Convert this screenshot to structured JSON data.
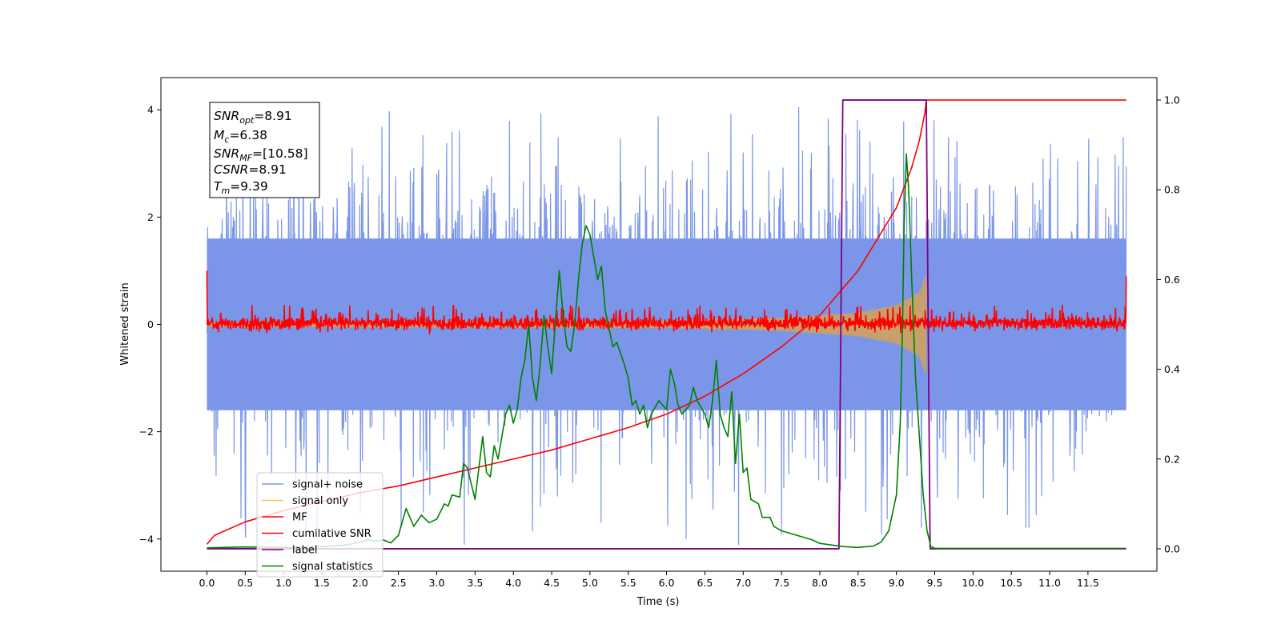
{
  "chart_data": {
    "type": "line",
    "title": "",
    "xlabel": "Time (s)",
    "ylabel_left": "Whitened strain",
    "ylabel_right": "",
    "xlim": [
      -0.6,
      12.4
    ],
    "ylim_left": [
      -4.6,
      4.6
    ],
    "ylim_right": [
      -0.05,
      1.05
    ],
    "x_ticks": [
      0.0,
      0.5,
      1.0,
      1.5,
      2.0,
      2.5,
      3.0,
      3.5,
      4.0,
      4.5,
      5.0,
      5.5,
      6.0,
      6.5,
      7.0,
      7.5,
      8.0,
      8.5,
      9.0,
      9.5,
      10.0,
      10.5,
      11.0,
      11.5
    ],
    "x_tick_labels": [
      "0.0",
      "0.5",
      "1.0",
      "1.5",
      "2.0",
      "2.5",
      "3.0",
      "3.5",
      "4.0",
      "4.5",
      "5.0",
      "5.5",
      "6.0",
      "6.5",
      "7.0",
      "7.5",
      "8.0",
      "8.5",
      "9.0",
      "9.5",
      "10.0",
      "10.5",
      "11.0",
      "11.5"
    ],
    "y_left_ticks": [
      -4,
      -2,
      0,
      2,
      4
    ],
    "y_left_tick_labels": [
      "−4",
      "−2",
      "0",
      "2",
      "4"
    ],
    "y_right_ticks": [
      0.0,
      0.2,
      0.4,
      0.6,
      0.8,
      1.0
    ],
    "y_right_tick_labels": [
      "0.0",
      "0.2",
      "0.4",
      "0.6",
      "0.8",
      "1.0"
    ],
    "grid": false,
    "legend_position": "bottom-left",
    "info_box": {
      "snr_opt": "=8.91",
      "mc": "=6.38",
      "snr_mf": "=[10.58]",
      "csnr": "=8.91",
      "tm": "=9.39"
    },
    "series": [
      {
        "name": "signal+ noise",
        "axis": "left",
        "color": "#7b96e8",
        "kind": "noise",
        "x_range": [
          0.0,
          12.0
        ],
        "amplitude_range": [
          -4.1,
          4.2
        ],
        "typical_spread": [
          -1.6,
          1.6
        ]
      },
      {
        "name": "signal only",
        "axis": "left",
        "color": "#f5c26b",
        "kind": "chirp",
        "x_range": [
          0.0,
          9.39
        ],
        "envelope_points": [
          {
            "x": 0.0,
            "amp": 0.05
          },
          {
            "x": 6.0,
            "amp": 0.08
          },
          {
            "x": 7.5,
            "amp": 0.12
          },
          {
            "x": 8.5,
            "amp": 0.22
          },
          {
            "x": 9.0,
            "amp": 0.36
          },
          {
            "x": 9.3,
            "amp": 0.6
          },
          {
            "x": 9.37,
            "amp": 0.9
          }
        ]
      },
      {
        "name": "MF",
        "axis": "left",
        "color": "#ff0000",
        "kind": "noise",
        "x_range": [
          0.0,
          12.0
        ],
        "typical_spread": [
          -0.12,
          0.2
        ],
        "edge_values": {
          "start": 1.0,
          "end": 0.9
        }
      },
      {
        "name": "cumilative SNR",
        "axis": "right",
        "color": "#ff0000",
        "kind": "line",
        "points": [
          {
            "x": 0.0,
            "y": 0.01
          },
          {
            "x": 0.1,
            "y": 0.03
          },
          {
            "x": 0.5,
            "y": 0.06
          },
          {
            "x": 1.0,
            "y": 0.085
          },
          {
            "x": 1.5,
            "y": 0.105
          },
          {
            "x": 2.0,
            "y": 0.125
          },
          {
            "x": 2.5,
            "y": 0.14
          },
          {
            "x": 3.0,
            "y": 0.16
          },
          {
            "x": 3.5,
            "y": 0.18
          },
          {
            "x": 4.0,
            "y": 0.2
          },
          {
            "x": 4.5,
            "y": 0.22
          },
          {
            "x": 5.0,
            "y": 0.245
          },
          {
            "x": 5.5,
            "y": 0.27
          },
          {
            "x": 6.0,
            "y": 0.3
          },
          {
            "x": 6.5,
            "y": 0.34
          },
          {
            "x": 7.0,
            "y": 0.39
          },
          {
            "x": 7.5,
            "y": 0.45
          },
          {
            "x": 8.0,
            "y": 0.52
          },
          {
            "x": 8.5,
            "y": 0.62
          },
          {
            "x": 9.0,
            "y": 0.76
          },
          {
            "x": 9.2,
            "y": 0.85
          },
          {
            "x": 9.3,
            "y": 0.91
          },
          {
            "x": 9.37,
            "y": 0.97
          },
          {
            "x": 9.39,
            "y": 1.0
          },
          {
            "x": 12.0,
            "y": 1.0
          }
        ]
      },
      {
        "name": "label",
        "axis": "right",
        "color": "#800080",
        "kind": "line",
        "points": [
          {
            "x": 0.0,
            "y": 0.0
          },
          {
            "x": 8.25,
            "y": 0.0
          },
          {
            "x": 8.3,
            "y": 1.0
          },
          {
            "x": 9.39,
            "y": 1.0
          },
          {
            "x": 9.44,
            "y": 0.0
          },
          {
            "x": 12.0,
            "y": 0.0
          }
        ]
      },
      {
        "name": "signal statistics",
        "axis": "right",
        "color": "#008000",
        "kind": "line",
        "points": [
          {
            "x": 0.0,
            "y": 0.002
          },
          {
            "x": 0.5,
            "y": 0.004
          },
          {
            "x": 1.0,
            "y": 0.003
          },
          {
            "x": 1.5,
            "y": 0.005
          },
          {
            "x": 1.8,
            "y": 0.008
          },
          {
            "x": 2.0,
            "y": 0.015
          },
          {
            "x": 2.1,
            "y": 0.02
          },
          {
            "x": 2.2,
            "y": 0.017
          },
          {
            "x": 2.3,
            "y": 0.02
          },
          {
            "x": 2.4,
            "y": 0.013
          },
          {
            "x": 2.5,
            "y": 0.03
          },
          {
            "x": 2.6,
            "y": 0.09
          },
          {
            "x": 2.7,
            "y": 0.05
          },
          {
            "x": 2.8,
            "y": 0.075
          },
          {
            "x": 2.9,
            "y": 0.058
          },
          {
            "x": 3.0,
            "y": 0.066
          },
          {
            "x": 3.1,
            "y": 0.1
          },
          {
            "x": 3.15,
            "y": 0.095
          },
          {
            "x": 3.2,
            "y": 0.12
          },
          {
            "x": 3.3,
            "y": 0.115
          },
          {
            "x": 3.35,
            "y": 0.19
          },
          {
            "x": 3.4,
            "y": 0.18
          },
          {
            "x": 3.5,
            "y": 0.11
          },
          {
            "x": 3.6,
            "y": 0.25
          },
          {
            "x": 3.65,
            "y": 0.17
          },
          {
            "x": 3.7,
            "y": 0.16
          },
          {
            "x": 3.75,
            "y": 0.23
          },
          {
            "x": 3.8,
            "y": 0.2
          },
          {
            "x": 3.9,
            "y": 0.3
          },
          {
            "x": 3.95,
            "y": 0.32
          },
          {
            "x": 4.0,
            "y": 0.28
          },
          {
            "x": 4.05,
            "y": 0.31
          },
          {
            "x": 4.1,
            "y": 0.38
          },
          {
            "x": 4.15,
            "y": 0.42
          },
          {
            "x": 4.2,
            "y": 0.5
          },
          {
            "x": 4.25,
            "y": 0.38
          },
          {
            "x": 4.3,
            "y": 0.33
          },
          {
            "x": 4.35,
            "y": 0.41
          },
          {
            "x": 4.4,
            "y": 0.52
          },
          {
            "x": 4.45,
            "y": 0.45
          },
          {
            "x": 4.5,
            "y": 0.39
          },
          {
            "x": 4.55,
            "y": 0.51
          },
          {
            "x": 4.6,
            "y": 0.62
          },
          {
            "x": 4.65,
            "y": 0.52
          },
          {
            "x": 4.7,
            "y": 0.45
          },
          {
            "x": 4.75,
            "y": 0.44
          },
          {
            "x": 4.8,
            "y": 0.5
          },
          {
            "x": 4.85,
            "y": 0.6
          },
          {
            "x": 4.9,
            "y": 0.68
          },
          {
            "x": 4.95,
            "y": 0.72
          },
          {
            "x": 5.0,
            "y": 0.7
          },
          {
            "x": 5.05,
            "y": 0.65
          },
          {
            "x": 5.1,
            "y": 0.6
          },
          {
            "x": 5.15,
            "y": 0.63
          },
          {
            "x": 5.2,
            "y": 0.53
          },
          {
            "x": 5.3,
            "y": 0.45
          },
          {
            "x": 5.35,
            "y": 0.46
          },
          {
            "x": 5.45,
            "y": 0.41
          },
          {
            "x": 5.5,
            "y": 0.38
          },
          {
            "x": 5.55,
            "y": 0.32
          },
          {
            "x": 5.6,
            "y": 0.33
          },
          {
            "x": 5.65,
            "y": 0.3
          },
          {
            "x": 5.7,
            "y": 0.32
          },
          {
            "x": 5.75,
            "y": 0.27
          },
          {
            "x": 5.8,
            "y": 0.3
          },
          {
            "x": 5.9,
            "y": 0.33
          },
          {
            "x": 6.0,
            "y": 0.31
          },
          {
            "x": 6.05,
            "y": 0.4
          },
          {
            "x": 6.1,
            "y": 0.37
          },
          {
            "x": 6.15,
            "y": 0.32
          },
          {
            "x": 6.2,
            "y": 0.3
          },
          {
            "x": 6.3,
            "y": 0.32
          },
          {
            "x": 6.35,
            "y": 0.36
          },
          {
            "x": 6.4,
            "y": 0.33
          },
          {
            "x": 6.5,
            "y": 0.3
          },
          {
            "x": 6.55,
            "y": 0.27
          },
          {
            "x": 6.6,
            "y": 0.33
          },
          {
            "x": 6.65,
            "y": 0.42
          },
          {
            "x": 6.7,
            "y": 0.3
          },
          {
            "x": 6.75,
            "y": 0.27
          },
          {
            "x": 6.8,
            "y": 0.25
          },
          {
            "x": 6.85,
            "y": 0.35
          },
          {
            "x": 6.9,
            "y": 0.19
          },
          {
            "x": 6.95,
            "y": 0.3
          },
          {
            "x": 7.0,
            "y": 0.17
          },
          {
            "x": 7.05,
            "y": 0.18
          },
          {
            "x": 7.1,
            "y": 0.11
          },
          {
            "x": 7.2,
            "y": 0.1
          },
          {
            "x": 7.25,
            "y": 0.07
          },
          {
            "x": 7.35,
            "y": 0.07
          },
          {
            "x": 7.4,
            "y": 0.05
          },
          {
            "x": 7.5,
            "y": 0.04
          },
          {
            "x": 7.7,
            "y": 0.03
          },
          {
            "x": 7.9,
            "y": 0.02
          },
          {
            "x": 8.0,
            "y": 0.012
          },
          {
            "x": 8.3,
            "y": 0.005
          },
          {
            "x": 8.5,
            "y": 0.003
          },
          {
            "x": 8.7,
            "y": 0.006
          },
          {
            "x": 8.8,
            "y": 0.015
          },
          {
            "x": 8.9,
            "y": 0.04
          },
          {
            "x": 9.0,
            "y": 0.12
          },
          {
            "x": 9.05,
            "y": 0.28
          },
          {
            "x": 9.08,
            "y": 0.5
          },
          {
            "x": 9.1,
            "y": 0.72
          },
          {
            "x": 9.13,
            "y": 0.88
          },
          {
            "x": 9.16,
            "y": 0.8
          },
          {
            "x": 9.2,
            "y": 0.6
          },
          {
            "x": 9.25,
            "y": 0.38
          },
          {
            "x": 9.3,
            "y": 0.25
          },
          {
            "x": 9.35,
            "y": 0.12
          },
          {
            "x": 9.4,
            "y": 0.04
          },
          {
            "x": 9.45,
            "y": 0.005
          },
          {
            "x": 9.5,
            "y": 0.001
          },
          {
            "x": 10.0,
            "y": 0.001
          },
          {
            "x": 11.0,
            "y": 0.001
          },
          {
            "x": 11.99,
            "y": 0.001
          }
        ]
      }
    ]
  }
}
